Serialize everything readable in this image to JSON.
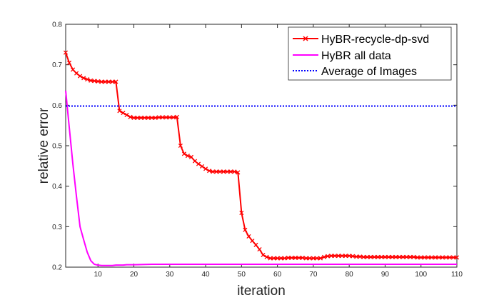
{
  "chart_data": {
    "type": "line",
    "title": "",
    "xlabel": "iteration",
    "ylabel": "relative error",
    "xlim": [
      1,
      110
    ],
    "ylim": [
      0.2,
      0.8
    ],
    "xticks": [
      10,
      20,
      30,
      40,
      50,
      60,
      70,
      80,
      90,
      100,
      110
    ],
    "yticks": [
      0.2,
      0.3,
      0.4,
      0.5,
      0.6,
      0.7,
      0.8
    ],
    "xtick_labels": [
      "10",
      "20",
      "30",
      "40",
      "50",
      "60",
      "70",
      "80",
      "90",
      "100",
      "110"
    ],
    "ytick_labels": [
      "0.2",
      "0.3",
      "0.4",
      "0.5",
      "0.6",
      "0.7",
      "0.8"
    ],
    "grid": false,
    "legend_position": "top-right",
    "series": [
      {
        "name": "HyBR-recycle-dp-svd",
        "color": "#ff0000",
        "line_style": "solid",
        "marker": "x",
        "x": [
          1,
          2,
          3,
          4,
          5,
          6,
          7,
          8,
          9,
          10,
          11,
          12,
          13,
          14,
          15,
          16,
          17,
          18,
          19,
          20,
          21,
          22,
          23,
          24,
          25,
          26,
          27,
          28,
          29,
          30,
          31,
          32,
          33,
          34,
          35,
          36,
          37,
          38,
          39,
          40,
          41,
          42,
          43,
          44,
          45,
          46,
          47,
          48,
          49,
          50,
          51,
          52,
          53,
          54,
          55,
          56,
          57,
          58,
          59,
          60,
          61,
          62,
          63,
          64,
          65,
          66,
          67,
          68,
          69,
          70,
          71,
          72,
          73,
          74,
          75,
          76,
          77,
          78,
          79,
          80,
          81,
          82,
          83,
          84,
          85,
          86,
          87,
          88,
          89,
          90,
          91,
          92,
          93,
          94,
          95,
          96,
          97,
          98,
          99,
          100,
          101,
          102,
          103,
          104,
          105,
          106,
          107,
          108,
          109,
          110
        ],
        "y": [
          0.73,
          0.705,
          0.688,
          0.679,
          0.672,
          0.667,
          0.664,
          0.661,
          0.66,
          0.659,
          0.658,
          0.658,
          0.658,
          0.658,
          0.658,
          0.586,
          0.581,
          0.576,
          0.571,
          0.569,
          0.569,
          0.569,
          0.569,
          0.569,
          0.569,
          0.569,
          0.57,
          0.57,
          0.57,
          0.57,
          0.57,
          0.571,
          0.5,
          0.48,
          0.475,
          0.472,
          0.462,
          0.455,
          0.449,
          0.443,
          0.438,
          0.436,
          0.436,
          0.436,
          0.436,
          0.436,
          0.436,
          0.436,
          0.434,
          0.334,
          0.292,
          0.276,
          0.265,
          0.255,
          0.244,
          0.23,
          0.225,
          0.222,
          0.222,
          0.222,
          0.222,
          0.222,
          0.223,
          0.223,
          0.223,
          0.223,
          0.223,
          0.222,
          0.222,
          0.222,
          0.222,
          0.222,
          0.225,
          0.227,
          0.228,
          0.228,
          0.228,
          0.228,
          0.228,
          0.228,
          0.227,
          0.226,
          0.226,
          0.225,
          0.225,
          0.225,
          0.225,
          0.225,
          0.225,
          0.225,
          0.225,
          0.225,
          0.225,
          0.225,
          0.225,
          0.225,
          0.225,
          0.225,
          0.224,
          0.224,
          0.224,
          0.224,
          0.224,
          0.224,
          0.224,
          0.224,
          0.224,
          0.224,
          0.224,
          0.224
        ]
      },
      {
        "name": "HyBR all data",
        "color": "#ff00ff",
        "line_style": "solid",
        "marker": "none",
        "x": [
          1,
          2,
          3,
          4,
          5,
          6,
          7,
          8,
          9,
          10,
          11,
          12,
          13,
          14,
          15,
          16,
          17,
          18,
          19,
          20,
          25,
          30,
          40,
          50,
          60,
          70,
          80,
          90,
          100,
          110
        ],
        "y": [
          0.636,
          0.545,
          0.455,
          0.375,
          0.3,
          0.268,
          0.237,
          0.216,
          0.207,
          0.205,
          0.204,
          0.204,
          0.204,
          0.204,
          0.205,
          0.205,
          0.205,
          0.206,
          0.206,
          0.206,
          0.207,
          0.207,
          0.207,
          0.207,
          0.207,
          0.207,
          0.207,
          0.207,
          0.207,
          0.207
        ]
      },
      {
        "name": "Average of Images",
        "color": "#0000ff",
        "line_style": "dotted",
        "marker": "none",
        "x": [
          1,
          110
        ],
        "y": [
          0.598,
          0.598
        ]
      }
    ]
  }
}
